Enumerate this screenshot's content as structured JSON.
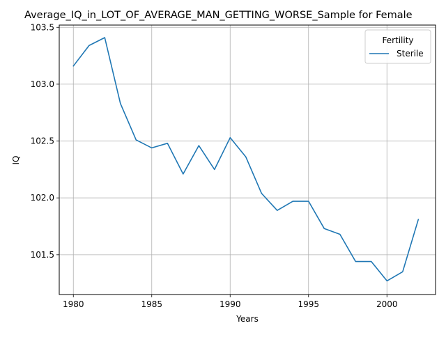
{
  "chart_data": {
    "type": "line",
    "title": "Average_IQ_in_LOT_OF_AVERAGE_MAN_GETTING_WORSE_Sample for Female",
    "xlabel": "Years",
    "ylabel": "IQ",
    "xlim": [
      1979.1,
      2003.1
    ],
    "ylim": [
      101.15,
      103.52
    ],
    "xticks": [
      1980,
      1985,
      1990,
      1995,
      2000
    ],
    "yticks": [
      101.5,
      102.0,
      102.5,
      103.0,
      103.5
    ],
    "ytick_labels": [
      "101.5",
      "102.0",
      "102.5",
      "103.0",
      "103.5"
    ],
    "grid": true,
    "legend": {
      "title": "Fertility",
      "placement": "top-right"
    },
    "series": [
      {
        "name": "Sterile",
        "color": "#1f77b4",
        "x": [
          1980,
          1981,
          1982,
          1983,
          1984,
          1985,
          1986,
          1987,
          1988,
          1989,
          1990,
          1991,
          1992,
          1993,
          1994,
          1995,
          1996,
          1997,
          1998,
          1999,
          2000,
          2001,
          2002
        ],
        "y": [
          103.16,
          103.34,
          103.41,
          102.83,
          102.51,
          102.44,
          102.48,
          102.21,
          102.46,
          102.25,
          102.53,
          102.36,
          102.04,
          101.89,
          101.97,
          101.97,
          101.73,
          101.68,
          101.44,
          101.44,
          101.27,
          101.35,
          101.81
        ]
      }
    ]
  }
}
